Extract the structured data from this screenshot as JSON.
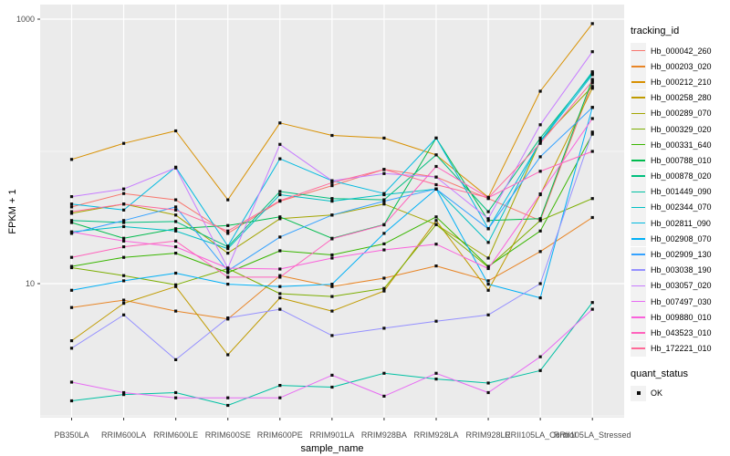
{
  "chart_data": {
    "type": "line",
    "title": "",
    "xlabel": "sample_name",
    "ylabel": "FPKM + 1",
    "y_scale": "log10",
    "ylim": [
      1,
      1100
    ],
    "y_ticks": [
      1000,
      10
    ],
    "y_minor_ticks": [
      100,
      1
    ],
    "grid": "on",
    "legend_position": "right",
    "categories": [
      "PB350LA",
      "RRIM600LA",
      "RRIM600LE",
      "RRIM600SE",
      "RRIM600PE",
      "RRIM901LA",
      "RRIM928BA",
      "RRIM928LA",
      "RRIM928LE",
      "RRII105LA_Control",
      "RRII105LA_Stressed"
    ],
    "series": [
      {
        "name": "Hb_000042_260",
        "color": "#F8766D",
        "values": [
          38,
          48,
          43,
          24,
          42,
          55,
          73,
          64,
          44,
          30,
          330
        ]
      },
      {
        "name": "Hb_000203_020",
        "color": "#E88526",
        "values": [
          6.6,
          7.5,
          6.2,
          5.4,
          11.5,
          9.5,
          11,
          13.6,
          10.5,
          17.5,
          31.6
        ]
      },
      {
        "name": "Hb_000212_210",
        "color": "#D89000",
        "values": [
          87,
          115,
          143,
          43,
          164,
          132,
          126,
          94,
          45,
          285,
          925
        ]
      },
      {
        "name": "Hb_000258_280",
        "color": "#C09B00",
        "values": [
          3.7,
          7.1,
          9.5,
          2.9,
          7.8,
          6.2,
          8.8,
          30,
          8.9,
          47,
          300
        ]
      },
      {
        "name": "Hb_000289_070",
        "color": "#A3A500",
        "values": [
          34,
          40,
          33,
          17,
          31,
          33,
          40,
          28,
          15.6,
          120,
          310
        ]
      },
      {
        "name": "Hb_000329_020",
        "color": "#7CAE00",
        "values": [
          13.2,
          11.5,
          9.8,
          13,
          8.4,
          8.0,
          9.2,
          28,
          13.3,
          30,
          44
        ]
      },
      {
        "name": "Hb_000331_640",
        "color": "#39B600",
        "values": [
          13.5,
          15.8,
          17,
          12.1,
          17.7,
          16.5,
          20,
          32,
          13.5,
          25,
          135
        ]
      },
      {
        "name": "Hb_000788_010",
        "color": "#00BB4E",
        "values": [
          29,
          22,
          26,
          27.5,
          32,
          22,
          28,
          126,
          30,
          31,
          350
        ]
      },
      {
        "name": "Hb_000878_020",
        "color": "#00BF7D",
        "values": [
          30,
          29,
          29.5,
          19,
          49.7,
          44,
          43,
          94,
          35,
          126,
          390
        ]
      },
      {
        "name": "Hb_001449_090",
        "color": "#00C1A3",
        "values": [
          1.3,
          1.45,
          1.5,
          1.2,
          1.7,
          1.65,
          2.1,
          1.9,
          1.77,
          2.2,
          7.2
        ]
      },
      {
        "name": "Hb_002344_070",
        "color": "#00BFC4",
        "values": [
          24.6,
          27,
          25,
          18.4,
          47,
          42,
          47,
          52,
          20.5,
          120,
          400
        ]
      },
      {
        "name": "Hb_002811_090",
        "color": "#00BAE0",
        "values": [
          40,
          36,
          76,
          19.2,
          88,
          60,
          48,
          126,
          26,
          118,
          380
        ]
      },
      {
        "name": "Hb_002908_070",
        "color": "#00B0F6",
        "values": [
          8.9,
          10.5,
          12,
          9.9,
          9.5,
          9.9,
          24,
          52,
          9.9,
          7.8,
          215
        ]
      },
      {
        "name": "Hb_002909_130",
        "color": "#35A2FF",
        "values": [
          24,
          30,
          38,
          12.5,
          22.5,
          33,
          42,
          52,
          26,
          91,
          215
        ]
      },
      {
        "name": "Hb_003038_190",
        "color": "#9590FF",
        "values": [
          3.25,
          5.8,
          2.66,
          5.5,
          6.4,
          4.05,
          4.6,
          5.2,
          5.8,
          10,
          140
        ]
      },
      {
        "name": "Hb_003057_020",
        "color": "#C77CFF",
        "values": [
          45.5,
          52,
          75,
          13.1,
          113,
          60,
          68,
          64,
          31,
          159,
          567
        ]
      },
      {
        "name": "Hb_007497_030",
        "color": "#E76BF3",
        "values": [
          1.8,
          1.5,
          1.37,
          1.37,
          1.37,
          2.03,
          1.41,
          2.1,
          1.5,
          2.8,
          6.4
        ]
      },
      {
        "name": "Hb_009880_010",
        "color": "#FA62DB",
        "values": [
          24.6,
          21,
          19,
          13.1,
          12.9,
          15.6,
          18,
          19.9,
          13.0,
          47.7,
          177
        ]
      },
      {
        "name": "Hb_043523_010",
        "color": "#FF62BC",
        "values": [
          15.8,
          19,
          21,
          11.2,
          11.2,
          21.8,
          27.8,
          77,
          44.6,
          70.7,
          100
        ]
      },
      {
        "name": "Hb_172221_010",
        "color": "#FF6A98",
        "values": [
          35,
          40,
          36,
          25,
          42.4,
          58,
          73,
          56,
          44.6,
          115,
          340
        ]
      }
    ],
    "legend": {
      "series_title": "tracking_id",
      "status_title": "quant_status",
      "status_items": [
        {
          "label": "OK",
          "marker": "black-square"
        }
      ]
    },
    "style": {
      "panel_bg": "#EBEBEB",
      "grid_color": "#FFFFFF",
      "point_color": "#0D0D0D",
      "tick_color": "#333333",
      "axis_text_color": "#4D4D4D",
      "legend_key_bg": "#F2F2F2"
    }
  }
}
